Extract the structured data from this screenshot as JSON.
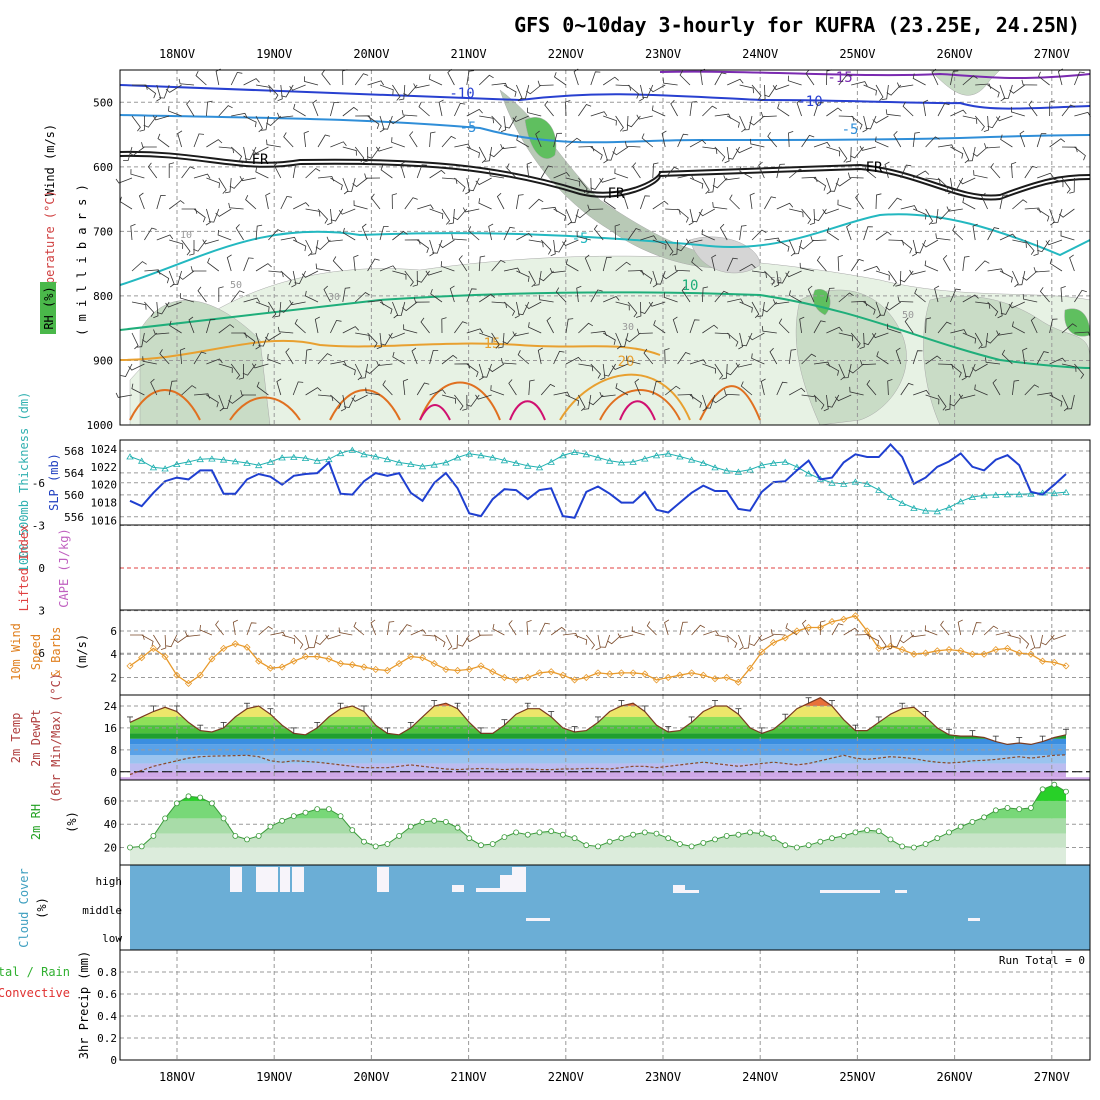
{
  "title": "GFS 0~10day 3-hourly for KUFRA (23.25E, 24.25N)",
  "dates": [
    "18NOV",
    "19NOV",
    "20NOV",
    "21NOV",
    "22NOV",
    "23NOV",
    "24NOV",
    "25NOV",
    "26NOV",
    "27NOV"
  ],
  "colors": {
    "rh_fill": "#2e9e2e",
    "wind_lbl": "#000000",
    "temp_lbl": "#b43030",
    "thick_lbl": "#30b0b0",
    "slp_lbl": "#2040c0",
    "li_lbl": "#e04040",
    "cape_lbl": "#c060c0",
    "wind10_lbl": "#e08020",
    "t2m_lbl": "#b04040",
    "rh2m_lbl": "#20a020",
    "cloud_lbl": "#40a0c0",
    "precip_total": "#30b030",
    "precip_conv": "#e03030",
    "cloud_bg": "#6baed6",
    "thick_line": "#20b0b0",
    "slp_line": "#1f3fd0",
    "wind_line": "#e89a2c",
    "rh_line": "#3a9a3a"
  },
  "panels": {
    "profile": {
      "ylabel": "( m i l l i b a r s )",
      "legend_wind": "Wind (m/s)",
      "legend_temp": "Temperature (°C)",
      "legend_rh": "RH (%)",
      "yticks": [
        "500",
        "600",
        "700",
        "800",
        "900",
        "1000"
      ],
      "contour_labels": [
        "-15",
        "-10",
        "-10",
        "-5",
        "-5",
        "FR",
        "FR",
        "FR",
        "-5",
        "10",
        "15",
        "20",
        "10",
        "30",
        "50",
        "50",
        "30",
        "50"
      ]
    },
    "thickness": {
      "label_thick": "1000-500mb Thickness (dm)",
      "label_slp": "SLP (mb)",
      "yticks_left": [
        "568",
        "564",
        "560",
        "556"
      ],
      "yticks_right": [
        "1024",
        "1022",
        "1020",
        "1018",
        "1016"
      ]
    },
    "li": {
      "label_li": "Lifted Index",
      "label_cape": "CAPE (J/kg)",
      "yticks": [
        "-6",
        "-3",
        "0",
        "3",
        "6"
      ]
    },
    "wind10": {
      "label_a": "10m Wind",
      "label_b": "Speed",
      "label_c": "& Barbs",
      "unit": "(m/s)",
      "yticks": [
        "6",
        "4",
        "2"
      ]
    },
    "temp2m": {
      "label_a": "2m Temp",
      "label_b": "2m DewPt",
      "label_c": "(6hr Min/Max) (°C)",
      "yticks": [
        "24",
        "16",
        "8",
        "0"
      ]
    },
    "rh2m": {
      "label": "2m RH",
      "unit": "(%)",
      "yticks": [
        "60",
        "40",
        "20"
      ]
    },
    "cloud": {
      "label": "Cloud Cover",
      "unit": "(%)",
      "levels": [
        "high",
        "middle",
        "low"
      ]
    },
    "precip": {
      "label_a": "3hr Precip (mm)",
      "label_b": "Total / Rain",
      "label_c": "Convective",
      "run_total": "Run Total = 0",
      "yticks": [
        "0.8",
        "0.6",
        "0.4",
        "0.2",
        "0"
      ]
    }
  },
  "chart_data": [
    {
      "type": "line",
      "title": "1000-500mb Thickness (dm)",
      "x_unit": "forecast hour (3-hourly, 17NOV 12Z start)",
      "ylim": [
        555,
        570
      ],
      "series": [
        {
          "name": "1000-500mb Thickness (dm)",
          "values": [
            567.0,
            566.2,
            565.0,
            564.8,
            565.6,
            566.0,
            566.5,
            566.6,
            566.4,
            566.1,
            565.8,
            565.4,
            566.0,
            566.8,
            566.9,
            566.7,
            566.2,
            566.5,
            567.6,
            568.2,
            567.4,
            567.0,
            566.5,
            565.9,
            565.6,
            565.2,
            565.5,
            565.9,
            566.8,
            567.5,
            567.2,
            566.8,
            566.3,
            565.8,
            565.3,
            565.0,
            566.0,
            567.2,
            567.8,
            567.4,
            566.8,
            566.2,
            565.9,
            566.0,
            566.6,
            567.2,
            567.5,
            567.0,
            566.4,
            565.8,
            565.0,
            564.4,
            564.2,
            564.6,
            565.4,
            565.8,
            566.0,
            565.1,
            563.9,
            562.9,
            562.2,
            562.0,
            562.4,
            562.0,
            560.9,
            559.6,
            558.5,
            557.6,
            557.1,
            557.0,
            557.7,
            558.8,
            559.6,
            559.9,
            560.0,
            560.1,
            560.1,
            560.2,
            560.4,
            560.3,
            560.5
          ]
        }
      ]
    },
    {
      "type": "line",
      "title": "SLP (mb)",
      "ylim": [
        1015.5,
        1025
      ],
      "series": [
        {
          "name": "SLP (mb)",
          "values": [
            1018.2,
            1017.6,
            1019.1,
            1020.4,
            1020.8,
            1020.6,
            1021.6,
            1021.6,
            1019.0,
            1019.0,
            1020.6,
            1021.2,
            1020.9,
            1020.0,
            1021.0,
            1021.2,
            1021.3,
            1022.5,
            1019.0,
            1018.9,
            1020.4,
            1021.3,
            1021.0,
            1021.3,
            1019.1,
            1018.2,
            1020.2,
            1021.3,
            1019.6,
            1016.8,
            1016.5,
            1018.4,
            1019.5,
            1019.4,
            1018.4,
            1019.4,
            1019.6,
            1016.5,
            1016.3,
            1019.2,
            1019.8,
            1019.0,
            1018.0,
            1018.0,
            1019.2,
            1017.2,
            1016.9,
            1018.0,
            1019.1,
            1019.9,
            1019.3,
            1019.3,
            1017.3,
            1017.1,
            1019.2,
            1020.3,
            1020.4,
            1021.6,
            1022.7,
            1020.6,
            1020.8,
            1022.5,
            1023.4,
            1023.1,
            1023.1,
            1024.5,
            1023.1,
            1020.1,
            1020.8,
            1022.0,
            1022.6,
            1023.5,
            1022.0,
            1021.6,
            1022.8,
            1023.3,
            1022.2,
            1019.2,
            1018.9,
            1020.0,
            1021.2
          ]
        }
      ]
    },
    {
      "type": "line",
      "title": "10m Wind Speed (m/s)",
      "ylim": [
        1,
        8
      ],
      "series": [
        {
          "name": "10m Wind Speed (m/s)",
          "values": [
            3.0,
            3.7,
            4.5,
            3.8,
            2.2,
            1.5,
            2.2,
            3.6,
            4.5,
            4.9,
            4.6,
            3.4,
            2.8,
            2.9,
            3.4,
            3.8,
            3.8,
            3.6,
            3.2,
            3.1,
            2.9,
            2.7,
            2.6,
            3.2,
            3.8,
            3.7,
            3.2,
            2.7,
            2.6,
            2.7,
            3.0,
            2.5,
            2.0,
            1.8,
            2.0,
            2.4,
            2.5,
            2.2,
            1.8,
            2.0,
            2.4,
            2.3,
            2.4,
            2.4,
            2.3,
            1.8,
            2.0,
            2.2,
            2.4,
            2.2,
            1.9,
            2.0,
            1.6,
            2.8,
            4.2,
            5.0,
            5.4,
            6.0,
            6.3,
            6.3,
            6.8,
            7.0,
            7.3,
            6.0,
            4.5,
            4.7,
            4.4,
            4.0,
            4.1,
            4.3,
            4.4,
            4.3,
            4.0,
            4.0,
            4.4,
            4.5,
            4.1,
            4.0,
            3.4,
            3.3,
            3.0
          ]
        }
      ]
    },
    {
      "type": "line",
      "title": "2m Temp (°C)",
      "ylim": [
        -4,
        28
      ],
      "series": [
        {
          "name": "2m Temp (°C)",
          "values": [
            18,
            20,
            22,
            23.5,
            22,
            18,
            15,
            14.5,
            16,
            20,
            23,
            24,
            21,
            17,
            14,
            13.5,
            16,
            20,
            23,
            24,
            22,
            17,
            14,
            13.5,
            16,
            20,
            24,
            25,
            23,
            18,
            14,
            14,
            17,
            21,
            23,
            23,
            20,
            16,
            14.5,
            15,
            18,
            22,
            24,
            25,
            22,
            17,
            14.5,
            15,
            18,
            22,
            24,
            24,
            21,
            16,
            14,
            15.5,
            19,
            23,
            25,
            27,
            24,
            19,
            15,
            15,
            18,
            21,
            23,
            23.5,
            20,
            16,
            13.5,
            13,
            13,
            12.5,
            11,
            10,
            10.5,
            10,
            11,
            12.5,
            13.5
          ]
        },
        {
          "name": "2m DewPt (°C)",
          "values": [
            -1,
            0.5,
            2,
            3,
            4,
            5,
            5.5,
            5.7,
            5.8,
            5.9,
            6,
            5.5,
            4,
            3.5,
            4,
            3.8,
            3.5,
            3,
            2.5,
            2,
            1.5,
            1.5,
            1.5,
            2,
            2.5,
            2,
            1.5,
            1,
            0.8,
            1,
            1.2,
            1,
            0.8,
            1,
            1,
            0.8,
            0.8,
            1,
            1,
            1.2,
            1.2,
            1,
            1.5,
            2,
            2,
            1.5,
            2,
            2.5,
            3,
            3.5,
            3,
            2.5,
            2,
            2.5,
            3,
            3.5,
            3,
            2.5,
            3,
            4,
            5,
            6,
            5,
            4.5,
            5,
            5.5,
            5.2,
            4.8,
            4,
            3.5,
            3.2,
            3.5,
            4,
            4.2,
            4.5,
            5,
            5.5,
            5,
            5.5,
            6,
            6.2
          ]
        }
      ]
    },
    {
      "type": "area",
      "title": "2m RH (%)",
      "ylim": [
        0,
        80
      ],
      "series": [
        {
          "name": "2m RH (%)",
          "values": [
            20,
            21,
            30,
            45,
            58,
            64,
            63,
            58,
            45,
            30,
            27,
            30,
            38,
            43,
            47,
            50,
            53,
            53,
            47,
            35,
            25,
            21,
            23,
            30,
            38,
            42,
            43,
            42,
            37,
            28,
            22,
            23,
            29,
            33,
            31,
            33,
            34,
            31,
            28,
            22,
            21,
            25,
            28,
            31,
            33,
            32,
            28,
            23,
            21,
            24,
            27,
            30,
            31,
            33,
            32,
            28,
            22,
            20,
            22,
            25,
            28,
            30,
            33,
            35,
            34,
            27,
            21,
            20,
            23,
            28,
            33,
            38,
            42,
            46,
            52,
            54,
            53,
            54,
            70,
            74,
            68
          ]
        }
      ]
    },
    {
      "type": "heatmap",
      "title": "Cloud Cover (%)",
      "categories": [
        "high",
        "middle",
        "low"
      ],
      "note": "mostly clear (blue) with scattered high/middle cloud segments"
    },
    {
      "type": "bar",
      "title": "3hr Precip (mm)",
      "ylim": [
        0,
        1
      ],
      "values": [],
      "run_total": 0
    }
  ]
}
